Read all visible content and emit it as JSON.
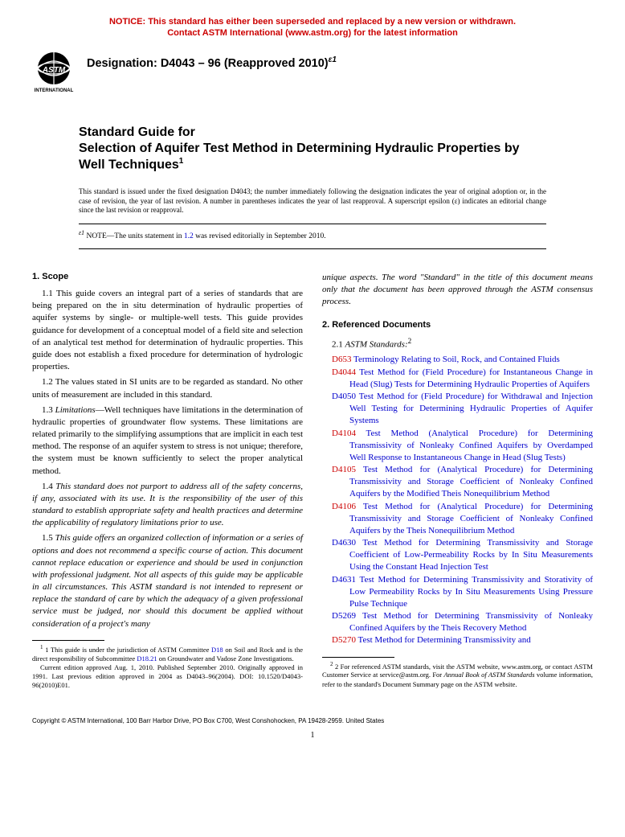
{
  "notice": {
    "line1": "NOTICE: This standard has either been superseded and replaced by a new version or withdrawn.",
    "line2": "Contact ASTM International (www.astm.org) for the latest information",
    "color": "#cc0000"
  },
  "logo": {
    "text_top": "ASTM",
    "text_bottom": "INTERNATIONAL"
  },
  "designation": {
    "label": "Designation: D4043 – 96 (Reapproved 2010)",
    "superscript": "ε1"
  },
  "title": {
    "line1": "Standard Guide for",
    "line2": "Selection of Aquifer Test Method in Determining Hydraulic Properties by Well Techniques",
    "super": "1"
  },
  "issuance": "This standard is issued under the fixed designation D4043; the number immediately following the designation indicates the year of original adoption or, in the case of revision, the year of last revision. A number in parentheses indicates the year of last reapproval. A superscript epsilon (ε) indicates an editorial change since the last revision or reapproval.",
  "eps_note": {
    "label": "ε1",
    "note_word": "NOTE",
    "text": "—The units statement in ",
    "link": "1.2",
    "tail": " was revised editorially in September 2010."
  },
  "scope": {
    "heading": "1. Scope",
    "p1": "1.1 This guide covers an integral part of a series of standards that are being prepared on the in situ determination of hydraulic properties of aquifer systems by single- or multiple-well tests. This guide provides guidance for development of a conceptual model of a field site and selection of an analytical test method for determination of hydraulic properties. This guide does not establish a fixed procedure for determination of hydrologic properties.",
    "p2": "1.2 The values stated in SI units are to be regarded as standard. No other units of measurement are included in this standard.",
    "p3_lead": "1.3 ",
    "p3_ital": "Limitations",
    "p3_rest": "—Well techniques have limitations in the determination of hydraulic properties of groundwater flow systems. These limitations are related primarily to the simplifying assumptions that are implicit in each test method. The response of an aquifer system to stress is not unique; therefore, the system must be known sufficiently to select the proper analytical method.",
    "p4": "1.4 This standard does not purport to address all of the safety concerns, if any, associated with its use. It is the responsibility of the user of this standard to establish appropriate safety and health practices and determine the applicability of regulatory limitations prior to use.",
    "p5": "1.5 This guide offers an organized collection of information or a series of options and does not recommend a specific course of action. This document cannot replace education or experience and should be used in conjunction with professional judgment. Not all aspects of this guide may be applicable in all circumstances. This ASTM standard is not intended to represent or replace the standard of care by which the adequacy of a given professional service must be judged, nor should this document be applied without consideration of a project's many",
    "p5_cont": "unique aspects. The word \"Standard\" in the title of this document means only that the document has been approved through the ASTM consensus process."
  },
  "refs": {
    "heading": "2. Referenced Documents",
    "sub_num": "2.1 ",
    "sub_ital": "ASTM Standards:",
    "sub_sup": "2",
    "items": [
      {
        "code": "D653",
        "red": true,
        "text": "Terminology Relating to Soil, Rock, and Contained Fluids"
      },
      {
        "code": "D4044",
        "red": true,
        "text": "Test Method for (Field Procedure) for Instantaneous Change in Head (Slug) Tests for Determining Hydraulic Properties of Aquifers"
      },
      {
        "code": "D4050",
        "red": false,
        "text": "Test Method for (Field Procedure) for Withdrawal and Injection Well Testing for Determining Hydraulic Properties of Aquifer Systems"
      },
      {
        "code": "D4104",
        "red": true,
        "text": "Test Method (Analytical Procedure) for Determining Transmissivity of Nonleaky Confined Aquifers by Overdamped Well Response to Instantaneous Change in Head (Slug Tests)"
      },
      {
        "code": "D4105",
        "red": true,
        "text": "Test Method for (Analytical Procedure) for Determining Transmissivity and Storage Coefficient of Nonleaky Confined Aquifers by the Modified Theis Nonequilibrium Method"
      },
      {
        "code": "D4106",
        "red": true,
        "text": "Test Method for (Analytical Procedure) for Determining Transmissivity and Storage Coefficient of Nonleaky Confined Aquifers by the Theis Nonequilibrium Method"
      },
      {
        "code": "D4630",
        "red": false,
        "text": "Test Method for Determining Transmissivity and Storage Coefficient of Low-Permeability Rocks by In Situ Measurements Using the Constant Head Injection Test"
      },
      {
        "code": "D4631",
        "red": false,
        "text": "Test Method for Determining Transmissivity and Storativity of Low Permeability Rocks by In Situ Measurements Using Pressure Pulse Technique"
      },
      {
        "code": "D5269",
        "red": false,
        "text": "Test Method for Determining Transmissivity of Nonleaky Confined Aquifers by the Theis Recovery Method"
      },
      {
        "code": "D5270",
        "red": true,
        "text": "Test Method for Determining Transmissivity and"
      }
    ]
  },
  "footnotes": {
    "left1_a": "1 This guide is under the jurisdiction of ASTM Committee ",
    "left1_link1": "D18",
    "left1_b": " on Soil and Rock and is the direct responsibility of Subcommittee ",
    "left1_link2": "D18.21",
    "left1_c": " on Groundwater and Vadose Zone Investigations.",
    "left2": "Current edition approved Aug. 1, 2010. Published September 2010. Originally approved in 1991. Last previous edition approved in 2004 as D4043–96(2004). DOI: 10.1520/D4043-96(2010)E01.",
    "right_a": "2 For referenced ASTM standards, visit the ASTM website, www.astm.org, or contact ASTM Customer Service at service@astm.org. For ",
    "right_ital": "Annual Book of ASTM Standards",
    "right_b": " volume information, refer to the standard's Document Summary page on the ASTM website."
  },
  "copyright": "Copyright © ASTM International, 100 Barr Harbor Drive, PO Box C700, West Conshohocken, PA 19428-2959. United States",
  "pagenum": "1",
  "colors": {
    "link": "#0000cc",
    "link_red": "#cc0000"
  }
}
